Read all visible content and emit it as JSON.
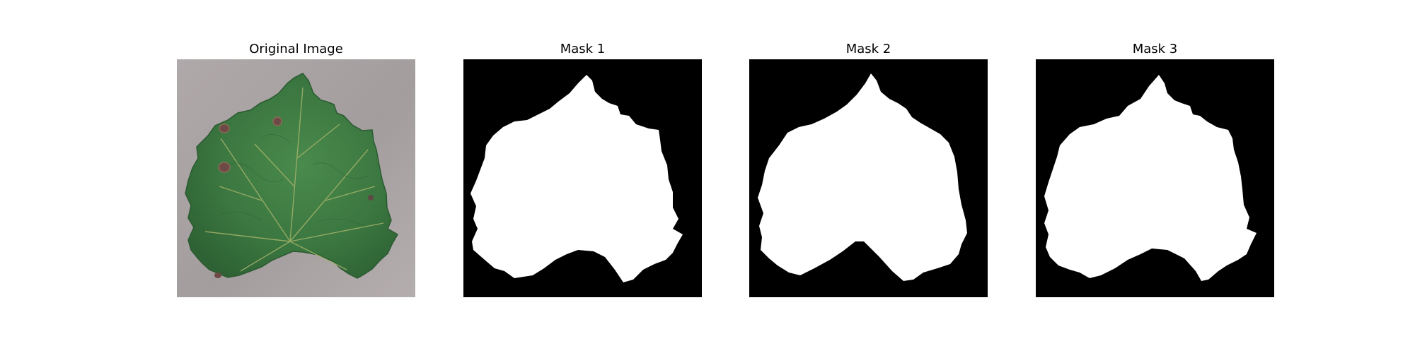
{
  "figure": {
    "panels": [
      {
        "title": "Original Image",
        "kind": "photo"
      },
      {
        "title": "Mask 1",
        "kind": "mask"
      },
      {
        "title": "Mask 2",
        "kind": "mask"
      },
      {
        "title": "Mask 3",
        "kind": "mask"
      }
    ]
  },
  "colors": {
    "background": "#ffffff",
    "mask_foreground": "#ffffff",
    "mask_background": "#000000",
    "photo_background": "#a8a2a3",
    "leaf_green": "#3f7f45",
    "leaf_dark_green": "#2f6336",
    "vein": "#a6b66d",
    "lesion": "#6d4a45"
  }
}
